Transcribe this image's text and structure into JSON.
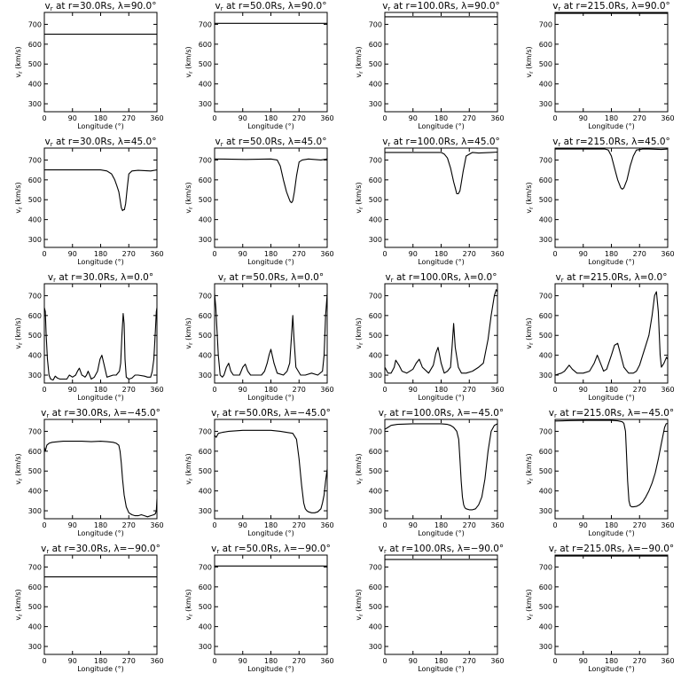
{
  "figure": {
    "xlabel": "Longitude (°)",
    "ylabel": "vr (km/s)",
    "xlim": [
      0,
      360
    ],
    "ylim": [
      260,
      760
    ],
    "xticks": [
      0,
      90,
      180,
      270,
      360
    ],
    "yticks": [
      300,
      400,
      500,
      600,
      700
    ],
    "line_color": "#000000",
    "background": "#ffffff"
  },
  "chart_data": [
    {
      "type": "line",
      "title": "vr at r=30.0Rs, λ=90.0°",
      "series": [
        {
          "x": [
            0,
            360
          ],
          "y": [
            650,
            650
          ]
        }
      ]
    },
    {
      "type": "line",
      "title": "vr at r=50.0Rs, λ=90.0°",
      "series": [
        {
          "x": [
            0,
            360
          ],
          "y": [
            705,
            705
          ]
        }
      ]
    },
    {
      "type": "line",
      "title": "vr at r=100.0Rs, λ=90.0°",
      "series": [
        {
          "x": [
            0,
            360
          ],
          "y": [
            738,
            738
          ]
        }
      ]
    },
    {
      "type": "line",
      "title": "vr at r=215.0Rs, λ=90.0°",
      "series": [
        {
          "x": [
            0,
            360
          ],
          "y": [
            755,
            755
          ]
        }
      ]
    },
    {
      "type": "line",
      "title": "vr at r=30.0Rs, λ=45.0°",
      "series": [
        {
          "x": [
            0,
            180,
            200,
            215,
            225,
            232,
            238,
            242,
            246,
            250,
            253,
            256,
            260,
            265,
            270,
            280,
            300,
            340,
            360
          ],
          "y": [
            650,
            650,
            645,
            630,
            600,
            570,
            540,
            500,
            460,
            445,
            450,
            450,
            480,
            560,
            630,
            645,
            648,
            645,
            650
          ]
        }
      ]
    },
    {
      "type": "line",
      "title": "vr at r=50.0Rs, λ=45.0°",
      "series": [
        {
          "x": [
            0,
            100,
            180,
            200,
            210,
            220,
            230,
            238,
            242,
            246,
            250,
            255,
            262,
            270,
            280,
            300,
            340,
            360
          ],
          "y": [
            705,
            703,
            705,
            700,
            670,
            600,
            540,
            505,
            490,
            485,
            495,
            540,
            620,
            690,
            700,
            705,
            700,
            705
          ]
        }
      ]
    },
    {
      "type": "line",
      "title": "vr at r=100.0Rs, λ=45.0°",
      "series": [
        {
          "x": [
            0,
            150,
            180,
            190,
            200,
            210,
            220,
            225,
            230,
            235,
            240,
            245,
            250,
            260,
            280,
            300,
            340,
            360
          ],
          "y": [
            738,
            738,
            738,
            730,
            710,
            660,
            590,
            560,
            530,
            530,
            545,
            590,
            640,
            720,
            738,
            735,
            738,
            740
          ]
        }
      ]
    },
    {
      "type": "line",
      "title": "vr at r=215.0Rs, λ=45.0°",
      "series": [
        {
          "x": [
            0,
            150,
            160,
            170,
            180,
            190,
            200,
            210,
            215,
            220,
            230,
            240,
            250,
            260,
            280,
            300,
            340,
            360
          ],
          "y": [
            755,
            755,
            755,
            750,
            720,
            660,
            600,
            560,
            553,
            560,
            600,
            670,
            720,
            750,
            755,
            755,
            753,
            755
          ]
        }
      ]
    },
    {
      "type": "line",
      "title": "vr at r=30.0Rs, λ=0.0°",
      "series": [
        {
          "x": [
            0,
            3,
            6,
            10,
            15,
            20,
            28,
            35,
            42,
            50,
            60,
            72,
            80,
            90,
            100,
            106,
            112,
            120,
            126,
            130,
            135,
            140,
            150,
            160,
            170,
            178,
            184,
            190,
            200,
            220,
            230,
            240,
            244,
            248,
            252,
            255,
            258,
            262,
            270,
            280,
            290,
            300,
            320,
            330,
            340,
            345,
            350,
            355,
            358,
            360
          ],
          "y": [
            640,
            620,
            500,
            380,
            300,
            280,
            275,
            295,
            285,
            280,
            280,
            280,
            300,
            290,
            300,
            320,
            335,
            300,
            295,
            290,
            300,
            320,
            280,
            290,
            320,
            380,
            400,
            360,
            290,
            300,
            300,
            320,
            360,
            500,
            610,
            560,
            380,
            290,
            280,
            285,
            300,
            300,
            295,
            290,
            290,
            320,
            380,
            520,
            620,
            640
          ]
        }
      ]
    },
    {
      "type": "line",
      "title": "vr at r=50.0Rs, λ=0.0°",
      "series": [
        {
          "x": [
            0,
            4,
            8,
            12,
            18,
            25,
            30,
            38,
            45,
            52,
            60,
            70,
            80,
            90,
            98,
            106,
            115,
            125,
            135,
            150,
            160,
            168,
            174,
            180,
            190,
            200,
            220,
            232,
            240,
            246,
            250,
            254,
            260,
            275,
            290,
            310,
            330,
            345,
            350,
            355,
            360
          ],
          "y": [
            710,
            640,
            520,
            400,
            300,
            290,
            300,
            340,
            360,
            320,
            300,
            300,
            300,
            340,
            355,
            320,
            300,
            300,
            300,
            300,
            320,
            360,
            400,
            430,
            360,
            310,
            300,
            320,
            360,
            500,
            600,
            480,
            340,
            300,
            300,
            310,
            300,
            320,
            400,
            600,
            710
          ]
        }
      ]
    },
    {
      "type": "line",
      "title": "vr at r=100.0Rs, λ=0.0°",
      "series": [
        {
          "x": [
            0,
            10,
            20,
            30,
            35,
            45,
            55,
            70,
            90,
            100,
            110,
            120,
            140,
            155,
            163,
            170,
            180,
            190,
            200,
            210,
            215,
            220,
            225,
            235,
            245,
            260,
            280,
            300,
            315,
            330,
            340,
            350,
            356,
            360
          ],
          "y": [
            340,
            310,
            310,
            340,
            375,
            350,
            320,
            310,
            330,
            360,
            380,
            340,
            310,
            350,
            410,
            440,
            360,
            310,
            320,
            340,
            440,
            560,
            440,
            340,
            310,
            310,
            320,
            340,
            360,
            480,
            600,
            700,
            730,
            720
          ]
        }
      ]
    },
    {
      "type": "line",
      "title": "vr at r=215.0Rs, λ=0.0°",
      "series": [
        {
          "x": [
            0,
            10,
            20,
            30,
            45,
            55,
            70,
            90,
            110,
            125,
            135,
            145,
            155,
            165,
            180,
            190,
            200,
            210,
            220,
            235,
            250,
            260,
            270,
            280,
            290,
            300,
            310,
            318,
            324,
            330,
            336,
            340,
            348,
            356,
            360
          ],
          "y": [
            300,
            305,
            310,
            320,
            350,
            330,
            310,
            310,
            320,
            360,
            400,
            360,
            320,
            330,
            400,
            450,
            460,
            400,
            340,
            310,
            310,
            320,
            350,
            400,
            450,
            500,
            600,
            700,
            720,
            620,
            400,
            340,
            360,
            390,
            380
          ]
        }
      ]
    },
    {
      "type": "line",
      "title": "vr at r=30.0Rs, λ=−45.0°",
      "series": [
        {
          "x": [
            0,
            3,
            8,
            15,
            25,
            45,
            60,
            90,
            120,
            150,
            180,
            200,
            220,
            230,
            238,
            242,
            246,
            250,
            255,
            262,
            270,
            280,
            290,
            300,
            310,
            320,
            330,
            340,
            350,
            355,
            358,
            360
          ],
          "y": [
            620,
            600,
            630,
            640,
            645,
            648,
            650,
            650,
            650,
            648,
            650,
            648,
            645,
            640,
            630,
            600,
            540,
            460,
            380,
            320,
            290,
            280,
            275,
            275,
            280,
            275,
            270,
            275,
            280,
            285,
            300,
            360
          ]
        }
      ]
    },
    {
      "type": "line",
      "title": "vr at r=50.0Rs, λ=−45.0°",
      "series": [
        {
          "x": [
            0,
            5,
            12,
            25,
            45,
            90,
            150,
            180,
            210,
            230,
            250,
            262,
            270,
            278,
            285,
            290,
            295,
            300,
            310,
            320,
            330,
            340,
            345,
            350,
            355,
            360
          ],
          "y": [
            680,
            670,
            690,
            695,
            700,
            705,
            705,
            705,
            700,
            695,
            690,
            660,
            560,
            430,
            340,
            310,
            300,
            295,
            290,
            290,
            295,
            310,
            340,
            380,
            450,
            510
          ]
        }
      ]
    },
    {
      "type": "line",
      "title": "vr at r=100.0Rs, λ=−45.0°",
      "series": [
        {
          "x": [
            0,
            10,
            20,
            40,
            90,
            150,
            180,
            200,
            210,
            220,
            230,
            236,
            240,
            244,
            248,
            252,
            256,
            260,
            270,
            280,
            290,
            300,
            310,
            320,
            330,
            340,
            350,
            360
          ],
          "y": [
            710,
            720,
            730,
            735,
            738,
            738,
            738,
            735,
            730,
            720,
            700,
            660,
            560,
            450,
            370,
            330,
            315,
            310,
            305,
            305,
            310,
            330,
            370,
            460,
            600,
            700,
            730,
            738
          ]
        }
      ]
    },
    {
      "type": "line",
      "title": "vr at r=215.0Rs, λ=−45.0°",
      "series": [
        {
          "x": [
            0,
            50,
            100,
            150,
            180,
            200,
            215,
            220,
            225,
            228,
            232,
            236,
            240,
            245,
            250,
            260,
            270,
            280,
            290,
            300,
            310,
            320,
            330,
            340,
            350,
            355,
            360
          ],
          "y": [
            752,
            754,
            755,
            755,
            755,
            753,
            748,
            740,
            700,
            600,
            450,
            350,
            325,
            320,
            320,
            322,
            330,
            345,
            370,
            400,
            440,
            490,
            560,
            640,
            720,
            738,
            740
          ]
        }
      ]
    },
    {
      "type": "line",
      "title": "vr at r=30.0Rs, λ=−90.0°",
      "series": [
        {
          "x": [
            0,
            360
          ],
          "y": [
            650,
            650
          ]
        }
      ]
    },
    {
      "type": "line",
      "title": "vr at r=50.0Rs, λ=−90.0°",
      "series": [
        {
          "x": [
            0,
            360
          ],
          "y": [
            705,
            705
          ]
        }
      ]
    },
    {
      "type": "line",
      "title": "vr at r=100.0Rs, λ=−90.0°",
      "series": [
        {
          "x": [
            0,
            360
          ],
          "y": [
            738,
            738
          ]
        }
      ]
    },
    {
      "type": "line",
      "title": "vr at r=215.0Rs, λ=−90.0°",
      "series": [
        {
          "x": [
            0,
            360
          ],
          "y": [
            755,
            755
          ]
        }
      ]
    }
  ]
}
